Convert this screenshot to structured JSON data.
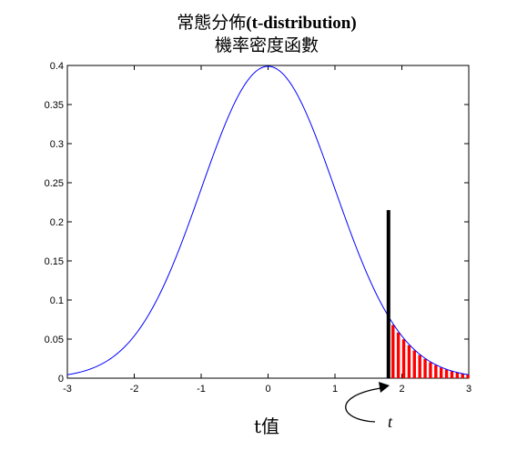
{
  "chart_data": {
    "type": "line",
    "title_cjk_prefix": "常態分佈",
    "title_latin": "(t-distribution)",
    "subtitle": "機率密度函數",
    "xlabel": "t值",
    "t_label": "t",
    "xlim": [
      -3,
      3
    ],
    "ylim": [
      0,
      0.4
    ],
    "x_ticks": [
      "-3",
      "-2",
      "-1",
      "0",
      "1",
      "2",
      "3"
    ],
    "y_ticks": [
      "0",
      "0.05",
      "0.1",
      "0.15",
      "0.2",
      "0.25",
      "0.3",
      "0.35",
      "0.4"
    ],
    "grid": false,
    "curve": {
      "color": "#0000ff",
      "points": [
        [
          -3.0,
          0.0044
        ],
        [
          -2.75,
          0.0091
        ],
        [
          -2.5,
          0.0175
        ],
        [
          -2.25,
          0.0317
        ],
        [
          -2.0,
          0.054
        ],
        [
          -1.75,
          0.0863
        ],
        [
          -1.5,
          0.1295
        ],
        [
          -1.25,
          0.1826
        ],
        [
          -1.0,
          0.242
        ],
        [
          -0.75,
          0.3011
        ],
        [
          -0.5,
          0.3521
        ],
        [
          -0.25,
          0.3867
        ],
        [
          0.0,
          0.3989
        ],
        [
          0.25,
          0.3867
        ],
        [
          0.5,
          0.3521
        ],
        [
          0.75,
          0.3011
        ],
        [
          1.0,
          0.242
        ],
        [
          1.25,
          0.1826
        ],
        [
          1.5,
          0.1295
        ],
        [
          1.75,
          0.0863
        ],
        [
          2.0,
          0.054
        ],
        [
          2.25,
          0.0317
        ],
        [
          2.5,
          0.0175
        ],
        [
          2.75,
          0.0091
        ],
        [
          3.0,
          0.0044
        ]
      ]
    },
    "t_value": 1.8,
    "t_line_top": 0.215,
    "t_line_color": "#000000",
    "shade_color": "#ff0000",
    "shaded_bars_x": [
      1.88,
      1.96,
      2.04,
      2.12,
      2.2,
      2.28,
      2.36,
      2.44,
      2.52,
      2.6,
      2.68,
      2.76,
      2.84,
      2.92,
      3.0
    ]
  }
}
